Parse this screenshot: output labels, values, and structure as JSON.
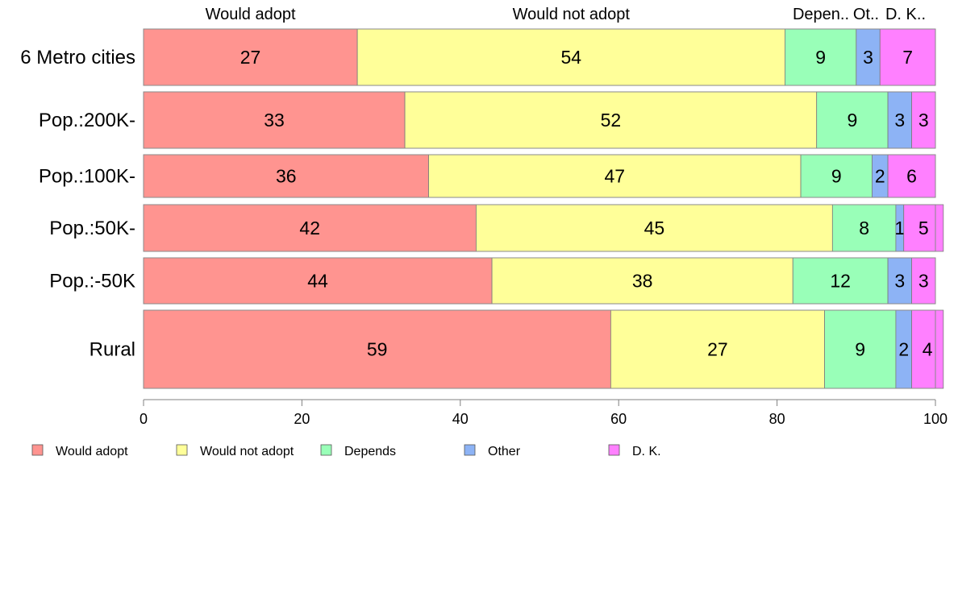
{
  "chart_data": {
    "type": "bar",
    "orientation": "horizontal",
    "stacked": true,
    "categories": [
      "6 Metro cities",
      "Pop.:200K-",
      "Pop.:100K-",
      "Pop.:50K-",
      "Pop.:-50K",
      "Rural"
    ],
    "series": [
      {
        "name": "Would adopt",
        "color": "#ff9490",
        "values": [
          27,
          33,
          36,
          42,
          44,
          59
        ]
      },
      {
        "name": "Would not adopt",
        "color": "#ffff99",
        "values": [
          54,
          52,
          47,
          45,
          38,
          27
        ]
      },
      {
        "name": "Depends",
        "color": "#99ffb8",
        "values": [
          9,
          9,
          9,
          8,
          12,
          9
        ]
      },
      {
        "name": "Other",
        "color": "#8db3f5",
        "values": [
          3,
          3,
          2,
          1,
          3,
          2
        ]
      },
      {
        "name": "D. K.",
        "color": "#ff80ff",
        "values": [
          7,
          3,
          6,
          5,
          3,
          4
        ]
      }
    ],
    "column_headers": [
      "Would adopt",
      "Would not adopt",
      "Depen..",
      "Ot..",
      "D. K.."
    ],
    "xlim": [
      0,
      100
    ],
    "xticks": [
      0,
      20,
      40,
      60,
      80,
      100
    ],
    "grid": false,
    "legend_position": "bottom-left"
  }
}
